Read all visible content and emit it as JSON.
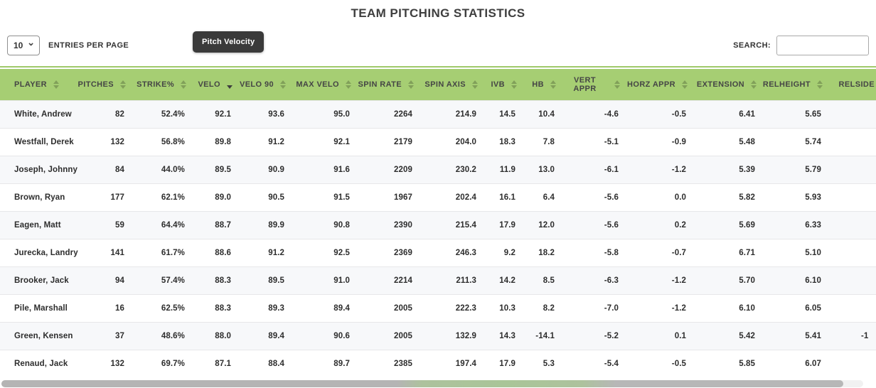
{
  "title": "TEAM PITCHING STATISTICS",
  "colors": {
    "header_green": "#a6ce73",
    "rule_green": "#9fc96b",
    "tooltip_bg": "#3a3a3a"
  },
  "controls": {
    "entries_select_value": "10",
    "entries_label": "ENTRIES PER PAGE",
    "tooltip_text": "Pitch Velocity",
    "search_label": "SEARCH:",
    "search_value": ""
  },
  "table": {
    "columns": [
      {
        "label": "PLAYER",
        "sort": "both",
        "align": "left"
      },
      {
        "label": "PITCHES",
        "sort": "both",
        "align": "right"
      },
      {
        "label": "STRIKE%",
        "sort": "both",
        "align": "right"
      },
      {
        "label": "VELO",
        "sort": "desc",
        "align": "right"
      },
      {
        "label": "VELO 90",
        "sort": "both",
        "align": "right"
      },
      {
        "label": "MAX VELO",
        "sort": "both",
        "align": "right"
      },
      {
        "label": "SPIN RATE",
        "sort": "both",
        "align": "right"
      },
      {
        "label": "SPIN AXIS",
        "sort": "both",
        "align": "right"
      },
      {
        "label": "IVB",
        "sort": "both",
        "align": "right"
      },
      {
        "label": "HB",
        "sort": "both",
        "align": "right"
      },
      {
        "label": "VERT APPR",
        "sort": "both",
        "align": "right"
      },
      {
        "label": "HORZ APPR",
        "sort": "both",
        "align": "right"
      },
      {
        "label": "EXTENSION",
        "sort": "both",
        "align": "right"
      },
      {
        "label": "RELHEIGHT",
        "sort": "both",
        "align": "right"
      },
      {
        "label": "RELSIDE",
        "sort": "both",
        "align": "right"
      }
    ],
    "rows": [
      [
        "White, Andrew",
        "82",
        "52.4%",
        "92.1",
        "93.6",
        "95.0",
        "2264",
        "214.9",
        "14.5",
        "10.4",
        "-4.6",
        "-0.5",
        "6.41",
        "5.65",
        ""
      ],
      [
        "Westfall, Derek",
        "132",
        "56.8%",
        "89.8",
        "91.2",
        "92.1",
        "2179",
        "204.0",
        "18.3",
        "7.8",
        "-5.1",
        "-0.9",
        "5.48",
        "5.74",
        ""
      ],
      [
        "Joseph, Johnny",
        "84",
        "44.0%",
        "89.5",
        "90.9",
        "91.6",
        "2209",
        "230.2",
        "11.9",
        "13.0",
        "-6.1",
        "-1.2",
        "5.39",
        "5.79",
        ""
      ],
      [
        "Brown, Ryan",
        "177",
        "62.1%",
        "89.0",
        "90.5",
        "91.5",
        "1967",
        "202.4",
        "16.1",
        "6.4",
        "-5.6",
        "0.0",
        "5.82",
        "5.93",
        ""
      ],
      [
        "Eagen, Matt",
        "59",
        "64.4%",
        "88.7",
        "89.9",
        "90.8",
        "2390",
        "215.4",
        "17.9",
        "12.0",
        "-5.6",
        "0.2",
        "5.69",
        "6.33",
        ""
      ],
      [
        "Jurecka, Landry",
        "141",
        "61.7%",
        "88.6",
        "91.2",
        "92.5",
        "2369",
        "246.3",
        "9.2",
        "18.2",
        "-5.8",
        "-0.7",
        "6.71",
        "5.10",
        ""
      ],
      [
        "Brooker, Jack",
        "94",
        "57.4%",
        "88.3",
        "89.5",
        "91.0",
        "2214",
        "211.3",
        "14.2",
        "8.5",
        "-6.3",
        "-1.2",
        "5.70",
        "6.10",
        ""
      ],
      [
        "Pile, Marshall",
        "16",
        "62.5%",
        "88.3",
        "89.3",
        "89.4",
        "2005",
        "222.3",
        "10.3",
        "8.2",
        "-7.0",
        "-1.2",
        "6.10",
        "6.05",
        ""
      ],
      [
        "Green, Kensen",
        "37",
        "48.6%",
        "88.0",
        "89.4",
        "90.6",
        "2005",
        "132.9",
        "14.3",
        "-14.1",
        "-5.2",
        "0.1",
        "5.42",
        "5.41",
        "-1"
      ],
      [
        "Renaud, Jack",
        "132",
        "69.7%",
        "87.1",
        "88.4",
        "89.7",
        "2385",
        "197.4",
        "17.9",
        "5.3",
        "-5.4",
        "-0.5",
        "5.85",
        "6.07",
        ""
      ]
    ]
  }
}
